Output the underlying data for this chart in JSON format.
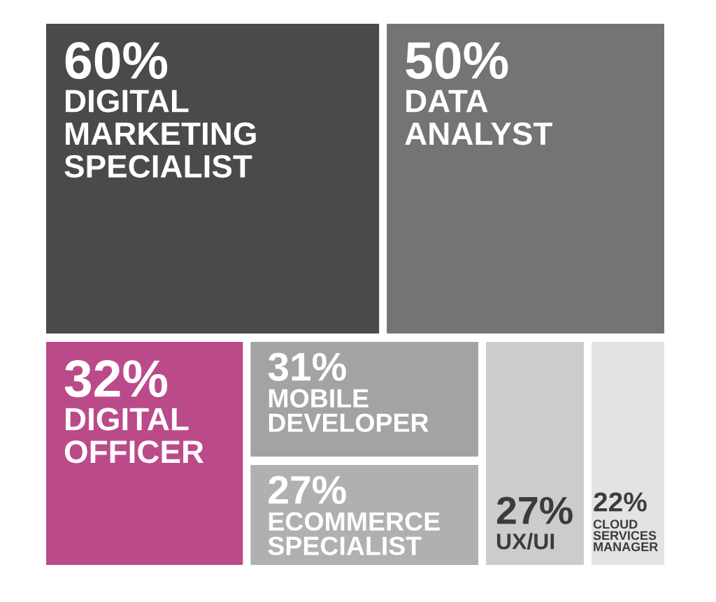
{
  "chart_data": {
    "type": "other",
    "categories": [
      "DIGITAL\nMARKETING\nSPECIALIST",
      "DATA\nANALYST",
      "DIGITAL\nOFFICER",
      "MOBILE\nDEVELOPER",
      "ECOMMERCE\nSPECIALIST",
      "UX/UI",
      "CLOUD\nSERVICES\nMANAGER"
    ],
    "values": [
      60,
      50,
      32,
      31,
      27,
      27,
      22
    ],
    "value_labels": [
      "60%",
      "50%",
      "32%",
      "31%",
      "27%",
      "27%",
      "22%"
    ],
    "colors": [
      "#4a4a4a",
      "#747474",
      "#bb4a8a",
      "#a3a3a3",
      "#b0b0b0",
      "#cccccc",
      "#e3e3e3"
    ]
  }
}
